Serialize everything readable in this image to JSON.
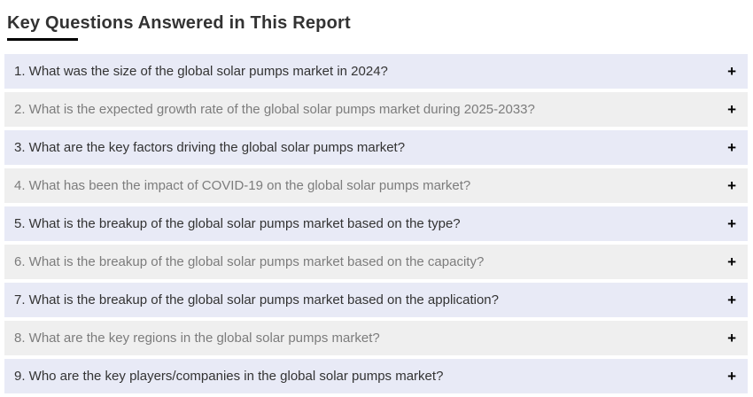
{
  "page": {
    "title": "Key Questions Answered in This Report"
  },
  "faq": {
    "items": [
      {
        "question": "1. What was the size of the global solar pumps market in 2024?"
      },
      {
        "question": "2. What is the expected growth rate of the global solar pumps market during 2025-2033?"
      },
      {
        "question": "3. What are the key factors driving the global solar pumps market?"
      },
      {
        "question": "4. What has been the impact of COVID-19 on the global solar pumps market?"
      },
      {
        "question": "5. What is the breakup of the global solar pumps market based on the type?"
      },
      {
        "question": "6. What is the breakup of the global solar pumps market based on the capacity?"
      },
      {
        "question": "7. What is the breakup of the global solar pumps market based on the application?"
      },
      {
        "question": "8. What are the key regions in the global solar pumps market?"
      },
      {
        "question": "9. Who are the key players/companies in the global solar pumps market?"
      }
    ]
  },
  "icons": {
    "plus": "+"
  },
  "colors": {
    "row_blue": "#e8eaf6",
    "row_gray": "#efefef",
    "text_dark": "#333333",
    "text_gray": "#7c7c7c",
    "title_underline": "#000000",
    "plus_icon": "#000000"
  }
}
